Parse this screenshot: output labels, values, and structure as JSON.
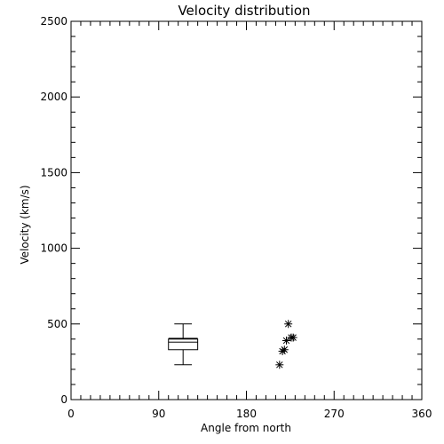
{
  "chart_data": {
    "type": "box+scatter",
    "title": "Velocity distribution",
    "xlabel": "Angle from north",
    "ylabel": "Velocity (km/s)",
    "xlim": [
      0,
      360
    ],
    "ylim": [
      0,
      2500
    ],
    "xticks": [
      0,
      90,
      180,
      270,
      360
    ],
    "yticks": [
      0,
      500,
      1000,
      1500,
      2000,
      2500
    ],
    "x_minor_step": 10,
    "y_minor_step": 100,
    "grid": false,
    "box": {
      "x": 115,
      "width": 30,
      "whisker_low": 230,
      "q1": 330,
      "median": 380,
      "mean": 405,
      "q3": 400,
      "whisker_high": 500
    },
    "scatter": {
      "marker": "asterisk",
      "points": [
        {
          "x": 214,
          "y": 230
        },
        {
          "x": 217,
          "y": 320
        },
        {
          "x": 219,
          "y": 330
        },
        {
          "x": 221,
          "y": 390
        },
        {
          "x": 223,
          "y": 500
        },
        {
          "x": 226,
          "y": 410
        },
        {
          "x": 228,
          "y": 410
        }
      ]
    }
  }
}
